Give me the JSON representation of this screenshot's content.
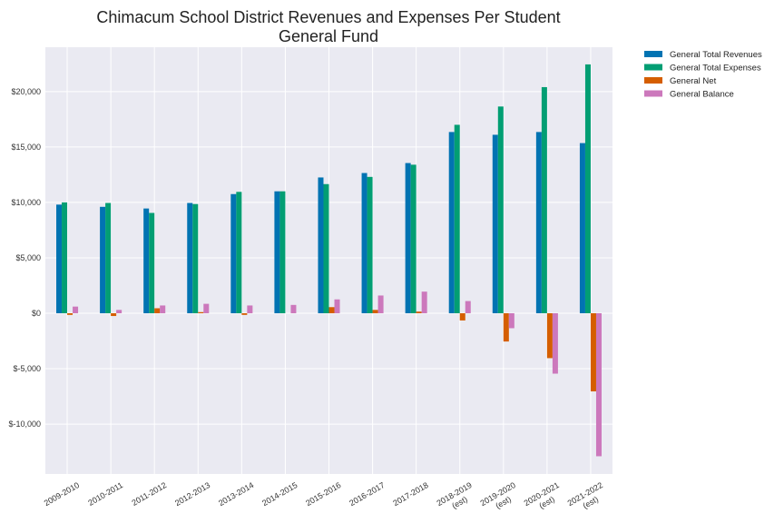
{
  "chart_data": {
    "type": "bar",
    "title": "Chimacum School District Revenues and Expenses Per Student",
    "subtitle": "General Fund",
    "xlabel": "",
    "ylabel": "",
    "categories": [
      [
        "2009-2010"
      ],
      [
        "2010-2011"
      ],
      [
        "2011-2012"
      ],
      [
        "2012-2013"
      ],
      [
        "2013-2014"
      ],
      [
        "2014-2015"
      ],
      [
        "2015-2016"
      ],
      [
        "2016-2017"
      ],
      [
        "2017-2018"
      ],
      [
        "2018-2019",
        "(est)"
      ],
      [
        "2019-2020",
        "(est)"
      ],
      [
        "2020-2021",
        "(est)"
      ],
      [
        "2021-2022",
        "(est)"
      ]
    ],
    "ylim": [
      -14500,
      24000
    ],
    "yticks": [
      -10000,
      -5000,
      0,
      5000,
      10000,
      15000,
      20000
    ],
    "ytick_labels": [
      "$-10,000",
      "$-5,000",
      "$0",
      "$5,000",
      "$10,000",
      "$15,000",
      "$20,000"
    ],
    "grid": true,
    "legend_position": "outside-top-right",
    "series": [
      {
        "name": "General Total Revenues",
        "color": "#0173b2",
        "values": [
          9800,
          9600,
          9450,
          9950,
          10750,
          11000,
          12250,
          12650,
          13550,
          16350,
          16100,
          16350,
          15350
        ]
      },
      {
        "name": "General Total Expenses",
        "color": "#029e73",
        "values": [
          10000,
          9950,
          9050,
          9850,
          10950,
          11000,
          11650,
          12300,
          13400,
          17000,
          18650,
          20400,
          22450
        ]
      },
      {
        "name": "General Net",
        "color": "#d55e00",
        "values": [
          -150,
          -250,
          450,
          100,
          -150,
          0,
          550,
          300,
          150,
          -650,
          -2550,
          -4050,
          -7050
        ]
      },
      {
        "name": "General Balance",
        "color": "#cc78bc",
        "values": [
          600,
          300,
          700,
          850,
          700,
          750,
          1250,
          1600,
          1950,
          1100,
          -1350,
          -5450,
          -12900
        ]
      }
    ]
  }
}
